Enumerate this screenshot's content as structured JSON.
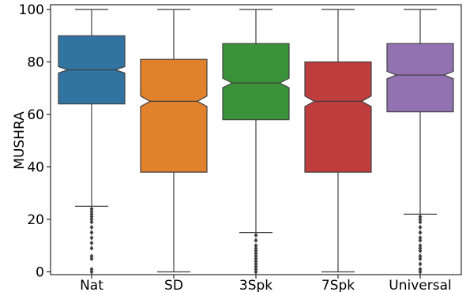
{
  "chart_data": {
    "type": "boxplot",
    "notched": true,
    "ylabel": "MUSHRA",
    "xlabel": "",
    "ylim": [
      0,
      100
    ],
    "yticks": [
      0,
      20,
      40,
      60,
      80,
      100
    ],
    "grid": false,
    "categories": [
      "Nat",
      "SD",
      "3Spk",
      "7Spk",
      "Universal"
    ],
    "boxes": [
      {
        "label": "Nat",
        "color": "#3274a1",
        "whisker_low": 25,
        "q1": 64,
        "median": 77,
        "q3": 90,
        "whisker_high": 100,
        "notch_low": 75.8,
        "notch_high": 78.2,
        "outliers": [
          24,
          23,
          22,
          21,
          20,
          19,
          17,
          15,
          13,
          11,
          9,
          6,
          5,
          1,
          0
        ]
      },
      {
        "label": "SD",
        "color": "#e1812c",
        "whisker_low": 0,
        "q1": 38,
        "median": 65,
        "q3": 81,
        "whisker_high": 100,
        "notch_low": 63.0,
        "notch_high": 67.0,
        "outliers": []
      },
      {
        "label": "3Spk",
        "color": "#3a923a",
        "whisker_low": 15,
        "q1": 58,
        "median": 72,
        "q3": 87,
        "whisker_high": 100,
        "notch_low": 70.2,
        "notch_high": 73.8,
        "outliers": [
          14,
          12,
          10,
          9,
          8,
          7,
          6,
          5,
          4,
          3,
          2,
          1,
          0
        ]
      },
      {
        "label": "7Spk",
        "color": "#c03d3e",
        "whisker_low": 0,
        "q1": 38,
        "median": 65,
        "q3": 80,
        "whisker_high": 100,
        "notch_low": 63.0,
        "notch_high": 67.0,
        "outliers": []
      },
      {
        "label": "Universal",
        "color": "#9372b2",
        "whisker_low": 22,
        "q1": 61,
        "median": 75,
        "q3": 87,
        "whisker_high": 100,
        "notch_low": 73.6,
        "notch_high": 76.4,
        "outliers": [
          21,
          20,
          19,
          17,
          15,
          13,
          12,
          10,
          9,
          8,
          6,
          5,
          3,
          1,
          0
        ]
      }
    ]
  }
}
